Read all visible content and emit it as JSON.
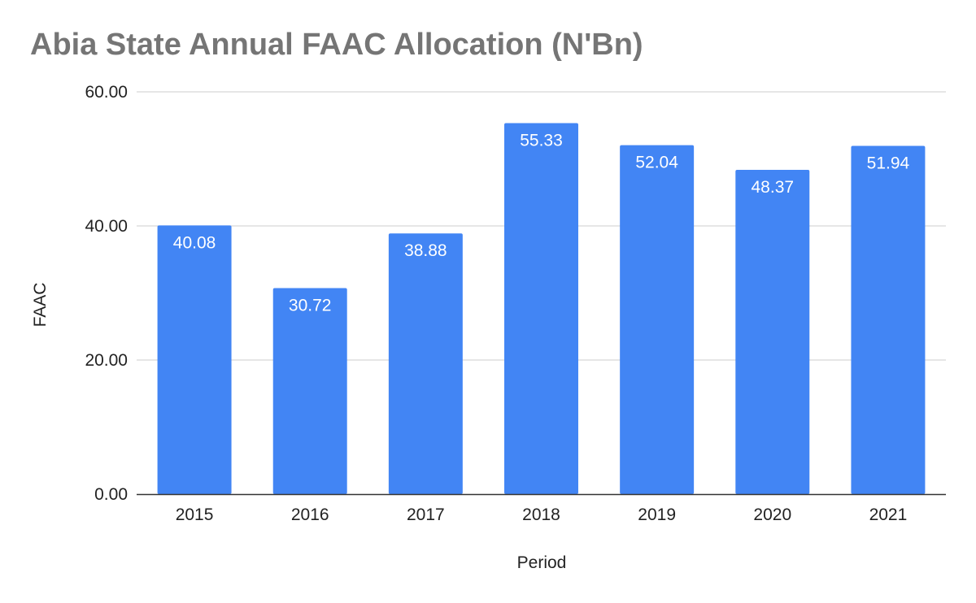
{
  "chart_data": {
    "type": "bar",
    "title": "Abia State Annual FAAC Allocation (N'Bn)",
    "xlabel": "Period",
    "ylabel": "FAAC",
    "categories": [
      "2015",
      "2016",
      "2017",
      "2018",
      "2019",
      "2020",
      "2021"
    ],
    "values": [
      40.08,
      30.72,
      38.88,
      55.33,
      52.04,
      48.37,
      51.94
    ],
    "data_labels": [
      "40.08",
      "30.72",
      "38.88",
      "55.33",
      "52.04",
      "48.37",
      "51.94"
    ],
    "ylim": [
      0,
      60
    ],
    "yticks": [
      0,
      20,
      40,
      60
    ],
    "ytick_labels": [
      "0.00",
      "20.00",
      "40.00",
      "60.00"
    ],
    "grid": true,
    "bar_color": "#4285f4",
    "title_color": "#757575",
    "grid_color": "#cccccc",
    "axis_color": "#333333"
  }
}
